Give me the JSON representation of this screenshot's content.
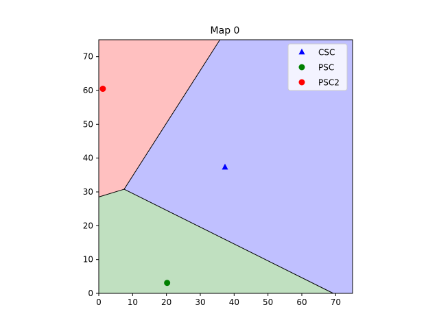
{
  "chart_data": {
    "type": "scatter",
    "title": "Map 0",
    "xlabel": "",
    "ylabel": "",
    "xlim": [
      0,
      75
    ],
    "ylim": [
      0,
      75
    ],
    "xticks": [
      0,
      10,
      20,
      30,
      40,
      50,
      60,
      70
    ],
    "yticks": [
      0,
      10,
      20,
      30,
      40,
      50,
      60,
      70
    ],
    "grid": false,
    "legend_position": "top-right",
    "regions": [
      {
        "name": "PSC2",
        "color": "#ffc0c0",
        "polygon": [
          [
            0,
            75
          ],
          [
            35.8,
            75
          ],
          [
            7.5,
            30.8
          ],
          [
            0,
            28.5
          ]
        ]
      },
      {
        "name": "CSC",
        "color": "#c0c0ff",
        "polygon": [
          [
            35.8,
            75
          ],
          [
            75,
            75
          ],
          [
            75,
            0
          ],
          [
            69.3,
            0
          ],
          [
            7.5,
            30.8
          ]
        ]
      },
      {
        "name": "PSC",
        "color": "#c0e0c0",
        "polygon": [
          [
            0,
            28.5
          ],
          [
            7.5,
            30.8
          ],
          [
            69.3,
            0
          ],
          [
            0,
            0
          ]
        ]
      }
    ],
    "boundaries": [
      [
        [
          0,
          28.5
        ],
        [
          7.5,
          30.8
        ]
      ],
      [
        [
          7.5,
          30.8
        ],
        [
          35.8,
          75
        ]
      ],
      [
        [
          7.5,
          30.8
        ],
        [
          69.3,
          0
        ]
      ]
    ],
    "series": [
      {
        "name": "CSC",
        "marker": "triangle",
        "color": "#0000ff",
        "points": [
          [
            37.3,
            37.3
          ]
        ]
      },
      {
        "name": "PSC",
        "marker": "circle",
        "color": "#008000",
        "points": [
          [
            20.2,
            3.1
          ]
        ]
      },
      {
        "name": "PSC2",
        "marker": "circle",
        "color": "#ff0000",
        "points": [
          [
            1.2,
            60.5
          ]
        ]
      }
    ]
  }
}
